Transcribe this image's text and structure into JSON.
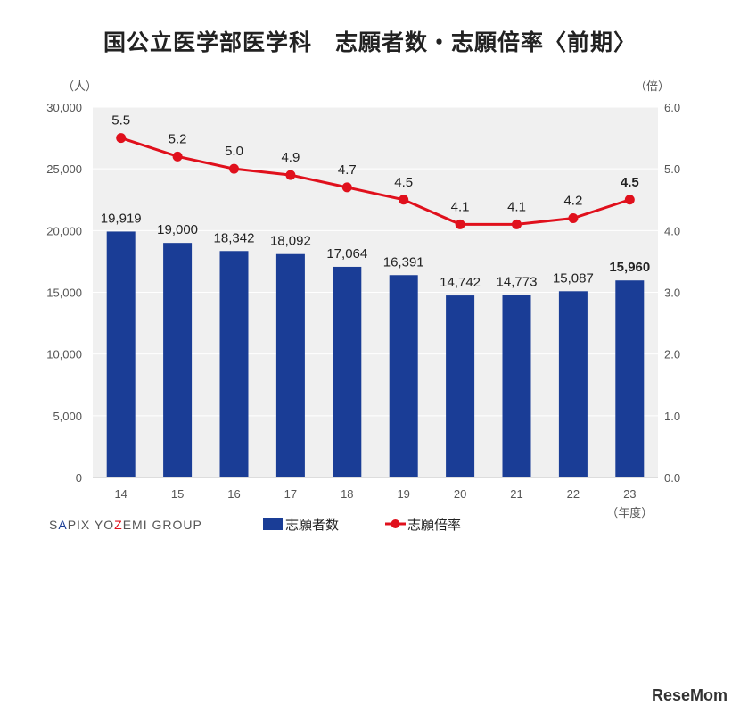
{
  "chart_data": {
    "type": "bar+line",
    "title": "国公立医学部医学科　志願者数・志願倍率〈前期〉",
    "categories": [
      "14",
      "15",
      "16",
      "17",
      "18",
      "19",
      "20",
      "21",
      "22",
      "23"
    ],
    "xlabel": "（年度）",
    "ylabel_left": "（人）",
    "ylabel_right": "（倍）",
    "ylim_left": [
      0,
      30000
    ],
    "yticks_left": [
      "0",
      "5,000",
      "10,000",
      "15,000",
      "20,000",
      "25,000",
      "30,000"
    ],
    "ylim_right": [
      0,
      6
    ],
    "yticks_right": [
      "0.0",
      "1.0",
      "2.0",
      "3.0",
      "4.0",
      "5.0",
      "6.0"
    ],
    "grid": true,
    "legend_position": "bottom",
    "series": [
      {
        "name": "志願者数",
        "type": "bar",
        "color": "#1a3d96",
        "values": [
          19919,
          19000,
          18342,
          18092,
          17064,
          16391,
          14742,
          14773,
          15087,
          15960
        ],
        "labels": [
          "19,919",
          "19,000",
          "18,342",
          "18,092",
          "17,064",
          "16,391",
          "14,742",
          "14,773",
          "15,087",
          "15,960"
        ]
      },
      {
        "name": "志願倍率",
        "type": "line",
        "color": "#e0101c",
        "values": [
          5.5,
          5.2,
          5.0,
          4.9,
          4.7,
          4.5,
          4.1,
          4.1,
          4.2,
          4.5
        ],
        "labels": [
          "5.5",
          "5.2",
          "5.0",
          "4.9",
          "4.7",
          "4.5",
          "4.1",
          "4.1",
          "4.2",
          "4.5"
        ]
      }
    ]
  },
  "source": "SAPIX YOZEMI GROUP",
  "watermark": "ReseMom"
}
